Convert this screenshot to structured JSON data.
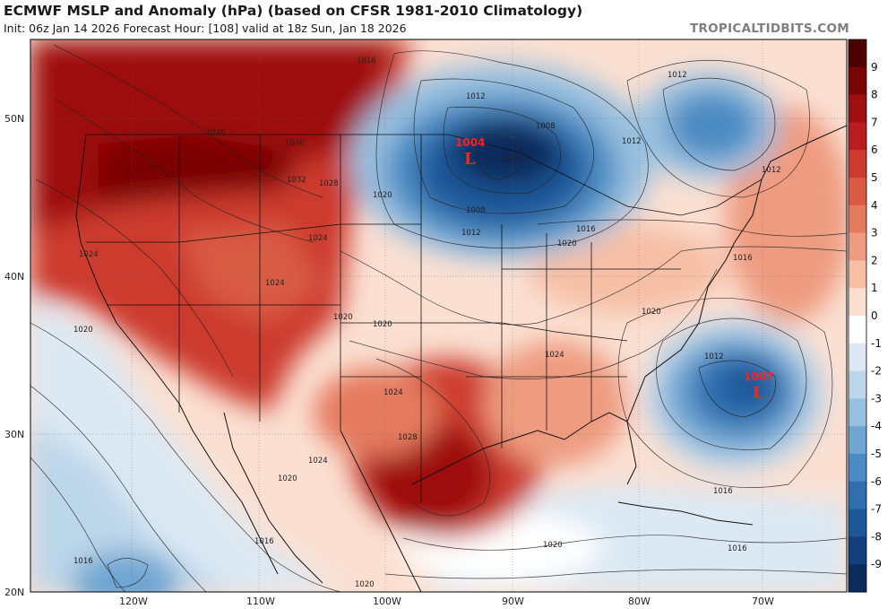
{
  "header": {
    "title": "ECMWF MSLP and Anomaly (hPa) (based on CFSR 1981-2010 Climatology)",
    "subtitle": "Init: 06z Jan 14 2026   Forecast Hour: [108]   valid at 18z Sun, Jan 18 2026",
    "brand": "TROPICALTIDBITS.COM"
  },
  "axes": {
    "lat_labels": [
      "50N",
      "40N",
      "30N",
      "20N"
    ],
    "lon_labels": [
      "120W",
      "110W",
      "100W",
      "90W",
      "80W",
      "70W"
    ]
  },
  "colorbar": {
    "labels": [
      "9",
      "8",
      "7",
      "6",
      "5",
      "4",
      "3",
      "2",
      "1",
      "0",
      "-1",
      "-2",
      "-3",
      "-4",
      "-5",
      "-6",
      "-7",
      "-8",
      "-9"
    ],
    "colors": [
      "#4d0000",
      "#7a0505",
      "#9e0f0f",
      "#b81e1e",
      "#cc3b2f",
      "#d95b44",
      "#e47a5e",
      "#ee9b80",
      "#f6bfa6",
      "#fbe0d2",
      "#ffffff",
      "#dce9f4",
      "#bcd6ea",
      "#98c0df",
      "#6fa6d2",
      "#4c8bc3",
      "#2f6fb0",
      "#1c5798",
      "#12407d",
      "#0b2b5c"
    ]
  },
  "lows": [
    {
      "value": "1004",
      "letter": "L"
    },
    {
      "value": "1007",
      "letter": "L"
    }
  ],
  "isobar_labels": [
    "1016",
    "1012",
    "1008",
    "1004",
    "1008",
    "1012",
    "1012",
    "1016",
    "1040",
    "1036",
    "1032",
    "1028",
    "1020",
    "1024",
    "1024",
    "1024",
    "1020",
    "1020",
    "1020",
    "1024",
    "1028",
    "1024",
    "1020",
    "1016",
    "1016",
    "1020",
    "1016",
    "1012",
    "1016",
    "1020",
    "1020",
    "1024",
    "1020",
    "1012",
    "1016",
    "1012"
  ]
}
